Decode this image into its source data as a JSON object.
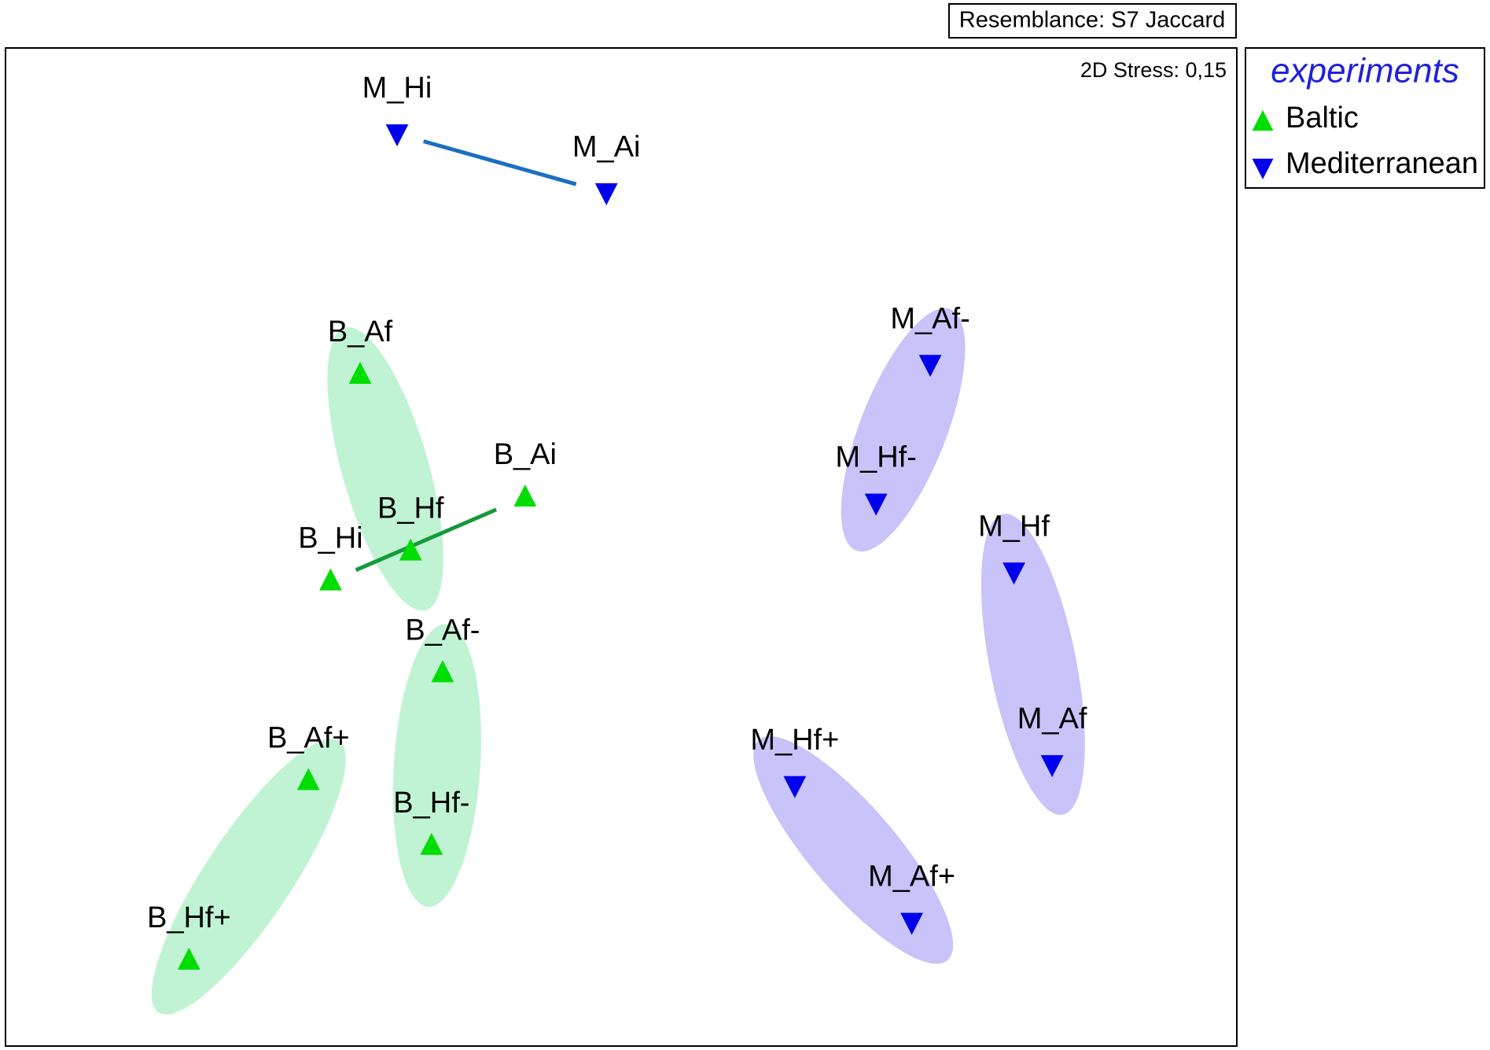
{
  "chart_data": {
    "type": "scatter",
    "title": "Resemblance: S7 Jaccard",
    "annotation": "2D Stress: 0,15",
    "legend_title": "experiments",
    "legend": "top-right",
    "xlim": [
      0,
      100
    ],
    "ylim": [
      0,
      100
    ],
    "series": [
      {
        "name": "Baltic",
        "color": "#00dd00",
        "marker": "triangle-up",
        "labels": [
          "B_Af",
          "B_Ai",
          "B_Hf",
          "B_Hi",
          "B_Af-",
          "B_Af+",
          "B_Hf-",
          "B_Hf+"
        ],
        "x": [
          28.8,
          42.2,
          32.9,
          26.4,
          35.5,
          24.6,
          34.6,
          14.9
        ],
        "y": [
          67.3,
          55.0,
          49.6,
          46.6,
          37.4,
          26.6,
          20.1,
          8.6
        ]
      },
      {
        "name": "Mediterranean",
        "color": "#0000ee",
        "marker": "triangle-down",
        "labels": [
          "M_Hi",
          "M_Ai",
          "M_Af-",
          "M_Hf-",
          "M_Hf",
          "M_Af",
          "M_Hf+",
          "M_Af+"
        ],
        "x": [
          31.8,
          48.8,
          75.1,
          70.7,
          81.9,
          85.0,
          64.1,
          73.6
        ],
        "y": [
          91.4,
          85.5,
          68.3,
          54.4,
          47.5,
          28.2,
          26.1,
          12.4
        ]
      }
    ]
  }
}
